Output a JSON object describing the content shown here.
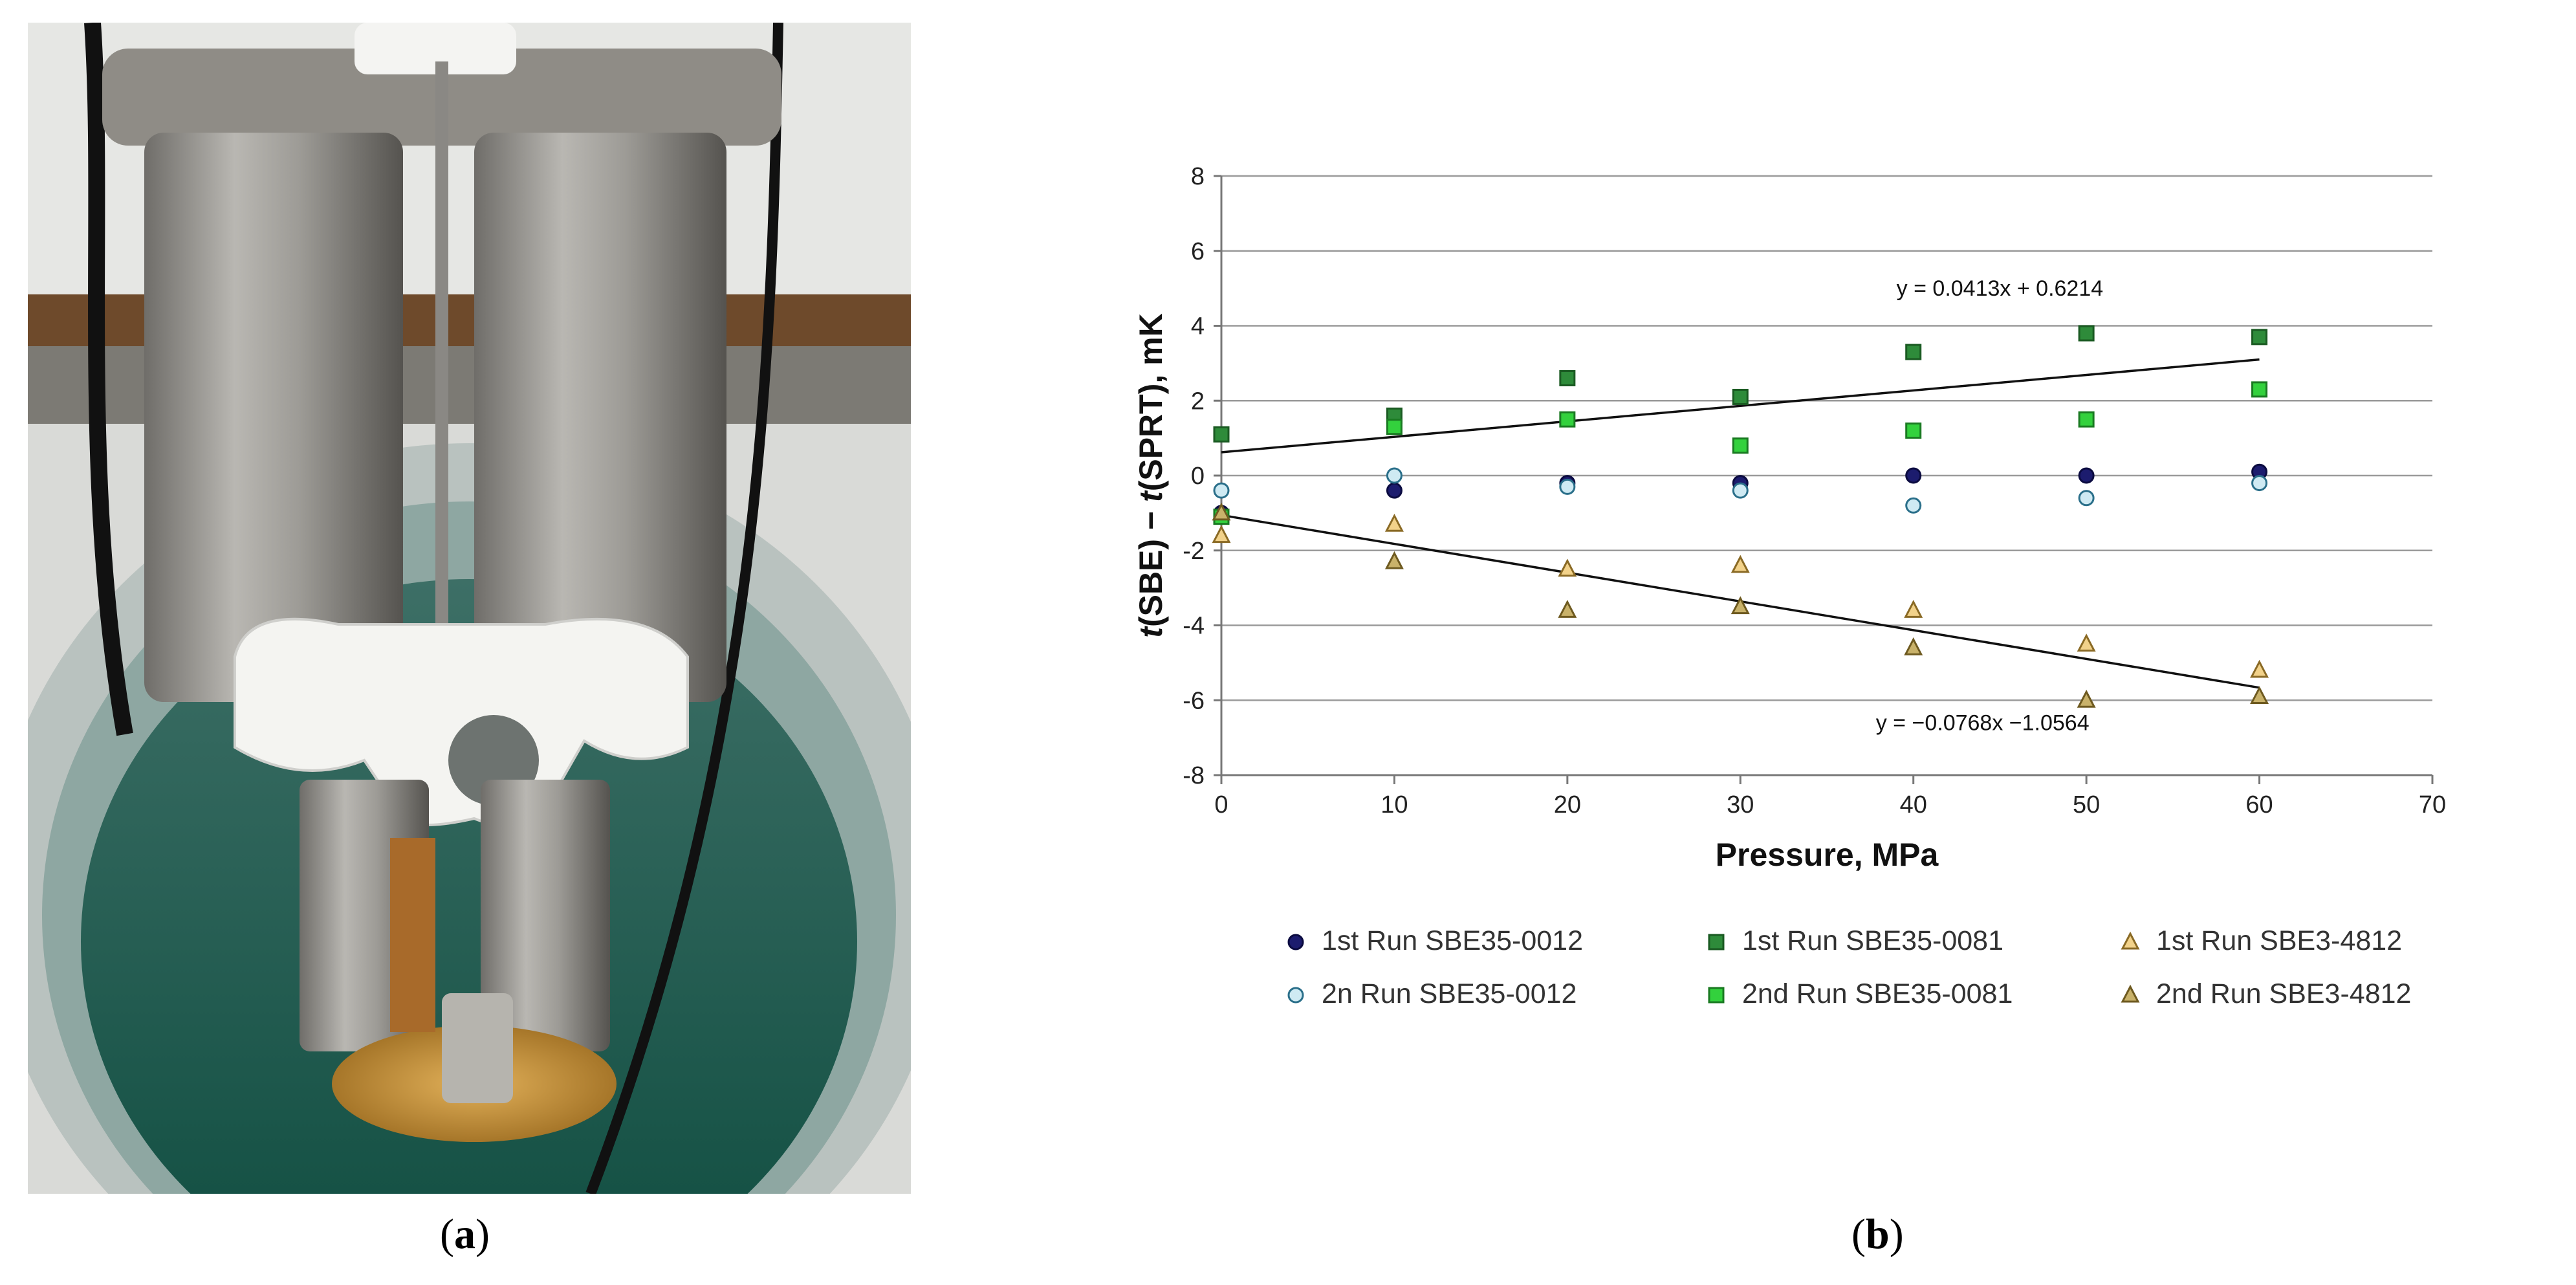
{
  "captions": {
    "a": "a",
    "b": "b"
  },
  "chart_data": {
    "type": "scatter",
    "xlabel": "Pressure, MPa",
    "ylabel_parts": [
      "t",
      "(SBE) − ",
      "t",
      "(SPRT), mK"
    ],
    "xlim": [
      0,
      70
    ],
    "ylim": [
      -8,
      8
    ],
    "x_ticks": [
      0,
      10,
      20,
      30,
      40,
      50,
      60,
      70
    ],
    "y_ticks": [
      -8,
      -6,
      -4,
      -2,
      0,
      2,
      4,
      6,
      8
    ],
    "grid": "horizontal",
    "series": [
      {
        "name": "1st Run SBE35-0012",
        "marker": "circle",
        "fill": "#1c1c6e",
        "stroke": "#0b0b40",
        "points": [
          [
            0,
            -1.0
          ],
          [
            10,
            -0.4
          ],
          [
            20,
            -0.2
          ],
          [
            30,
            -0.2
          ],
          [
            40,
            0.0
          ],
          [
            50,
            0.0
          ],
          [
            60,
            0.1
          ]
        ]
      },
      {
        "name": "1st Run SBE35-0081",
        "marker": "square",
        "fill": "#2e8b3a",
        "stroke": "#1a5a22",
        "points": [
          [
            0,
            1.1
          ],
          [
            10,
            1.6
          ],
          [
            20,
            2.6
          ],
          [
            30,
            2.1
          ],
          [
            40,
            3.3
          ],
          [
            50,
            3.8
          ],
          [
            60,
            3.7
          ]
        ]
      },
      {
        "name": "1st Run SBE3-4812",
        "marker": "triangle",
        "fill": "#f2d28a",
        "stroke": "#8a6a25",
        "points": [
          [
            0,
            -1.6
          ],
          [
            10,
            -1.3
          ],
          [
            20,
            -2.5
          ],
          [
            30,
            -2.4
          ],
          [
            40,
            -3.6
          ],
          [
            50,
            -4.5
          ],
          [
            60,
            -5.2
          ]
        ]
      },
      {
        "name": "2n Run SBE35-0012",
        "marker": "circle",
        "fill": "#cfeaf3",
        "stroke": "#2a6f8a",
        "points": [
          [
            0,
            -0.4
          ],
          [
            10,
            0.0
          ],
          [
            20,
            -0.3
          ],
          [
            30,
            -0.4
          ],
          [
            40,
            -0.8
          ],
          [
            50,
            -0.6
          ],
          [
            60,
            -0.2
          ]
        ]
      },
      {
        "name": "2nd Run SBE35-0081",
        "marker": "square",
        "fill": "#33d13d",
        "stroke": "#1a7a22",
        "points": [
          [
            0,
            -1.1
          ],
          [
            10,
            1.3
          ],
          [
            20,
            1.5
          ],
          [
            30,
            0.8
          ],
          [
            40,
            1.2
          ],
          [
            50,
            1.5
          ],
          [
            60,
            2.3
          ]
        ]
      },
      {
        "name": "2nd Run SBE3-4812",
        "marker": "triangle",
        "fill": "#c9b26a",
        "stroke": "#6e5a20",
        "points": [
          [
            0,
            -1.0
          ],
          [
            10,
            -2.3
          ],
          [
            20,
            -3.6
          ],
          [
            30,
            -3.5
          ],
          [
            40,
            -4.6
          ],
          [
            50,
            -6.0
          ],
          [
            60,
            -5.9
          ]
        ]
      }
    ],
    "trendlines": [
      {
        "label": "y = 0.0413x + 0.6214",
        "slope": 0.0413,
        "intercept": 0.6214,
        "x_range": [
          0,
          60
        ],
        "label_anchor": [
          45,
          4.8
        ]
      },
      {
        "label": "y = −0.0768x −1.0564",
        "slope": -0.0768,
        "intercept": -1.0564,
        "x_range": [
          0,
          60
        ],
        "label_anchor": [
          44,
          -6.8
        ]
      }
    ]
  }
}
